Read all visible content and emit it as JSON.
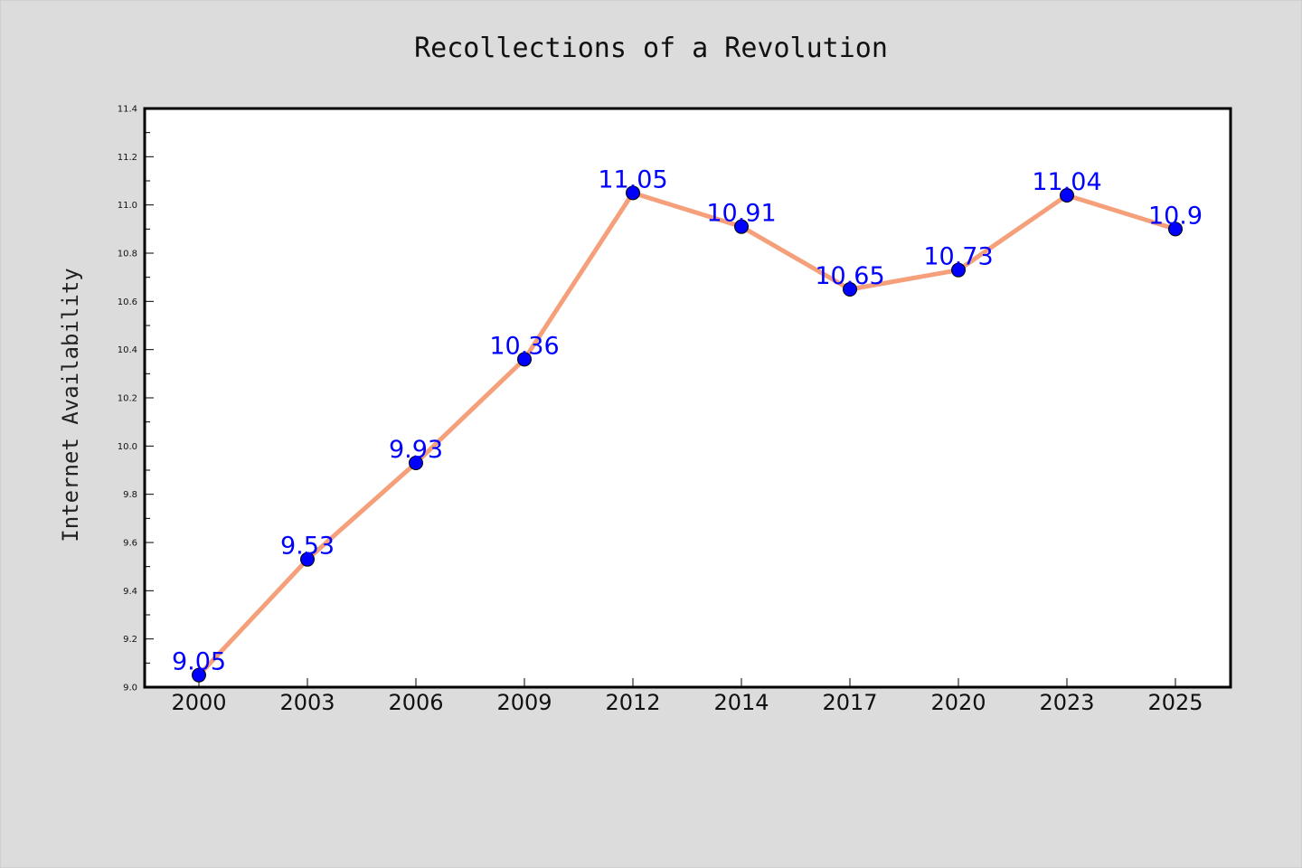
{
  "chart_data": {
    "type": "line",
    "title": "Recollections of a Revolution",
    "xlabel": "",
    "ylabel": "Internet Availability",
    "categories": [
      "2000",
      "2003",
      "2006",
      "2009",
      "2012",
      "2014",
      "2017",
      "2020",
      "2023",
      "2025"
    ],
    "series": [
      {
        "values": [
          9.05,
          9.53,
          9.93,
          10.36,
          11.05,
          10.91,
          10.65,
          10.73,
          11.04,
          10.9
        ],
        "labels": [
          "9.05",
          "9.53",
          "9.93",
          "10.36",
          "11.05",
          "10.91",
          "10.65",
          "10.73",
          "11.04",
          "10.9"
        ],
        "line_color": "#f5a07a",
        "marker_color": "#0000ff",
        "label_color": "#0000ff"
      }
    ],
    "ylim": [
      9.0,
      11.4
    ],
    "yticks": [
      "9.0",
      "9.2",
      "9.4",
      "9.6",
      "9.8",
      "10.0",
      "10.2",
      "10.4",
      "10.6",
      "10.8",
      "11.0",
      "11.2",
      "11.4"
    ],
    "grid": false,
    "legend": "none",
    "background_color": "#dcdcdc",
    "plot_background_color": "#ffffff"
  }
}
